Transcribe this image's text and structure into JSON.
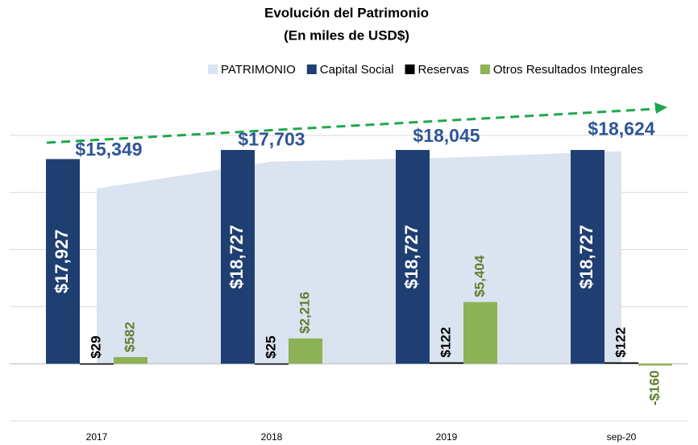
{
  "chart_data": {
    "type": "bar",
    "title": "Evolución del Patrimonio",
    "subtitle": "(En miles de USD$)",
    "categories": [
      "2017",
      "2018",
      "2019",
      "sep-20"
    ],
    "series": [
      {
        "name": "PATRIMONIO",
        "kind": "area",
        "color": "#dae3f0",
        "label_color": "#2f5597",
        "values": [
          15349,
          17703,
          18045,
          18624
        ],
        "value_labels": [
          "$15,349",
          "$17,703",
          "$18,045",
          "$18,624"
        ]
      },
      {
        "name": "Capital Social",
        "color": "#1f3f73",
        "label_color": "#ffffff",
        "values": [
          17927,
          18727,
          18727,
          18727
        ],
        "value_labels": [
          "$17,927",
          "$18,727",
          "$18,727",
          "$18,727"
        ]
      },
      {
        "name": "Reservas",
        "color": "#000000",
        "label_color": "#000000",
        "values": [
          29,
          25,
          122,
          122
        ],
        "value_labels": [
          "$29",
          "$25",
          "$122",
          "$122"
        ]
      },
      {
        "name": "Otros Resultados Integrales",
        "color": "#8db255",
        "label_color": "#5f7f2e",
        "values": [
          582,
          2216,
          5404,
          -160
        ],
        "value_labels": [
          "$582",
          "$2,216",
          "$5,404",
          "-$160"
        ]
      }
    ],
    "ylim": [
      -5000,
      20000
    ],
    "yticks": [
      -5000,
      0,
      5000,
      10000,
      15000,
      20000
    ],
    "grid": true,
    "legend": "top"
  }
}
